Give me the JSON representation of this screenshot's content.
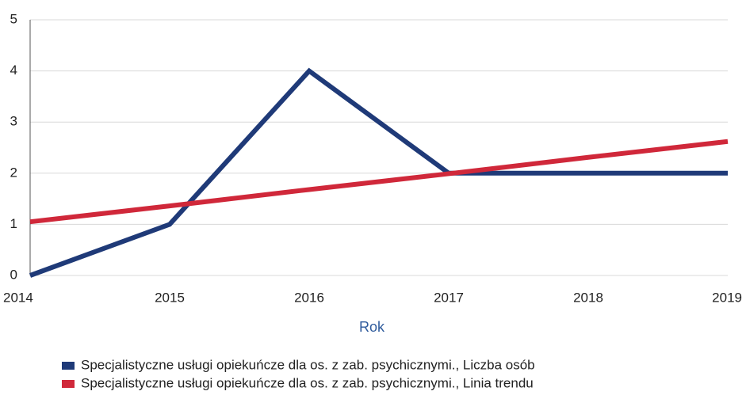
{
  "chart_data": {
    "type": "line",
    "x": [
      2014,
      2015,
      2016,
      2017,
      2018,
      2019
    ],
    "series": [
      {
        "name": "Specjalistyczne usługi opiekuńcze dla os. z zab. psychicznymi., Liczba osób",
        "color": "#1f3a78",
        "values": [
          0,
          1,
          4,
          2,
          2,
          2
        ]
      },
      {
        "name": "Specjalistyczne usługi opiekuńcze dla os. z zab. psychicznymi., Linia trendu",
        "color": "#d0283a",
        "values": [
          1.05,
          1.36,
          1.68,
          1.99,
          2.31,
          2.62
        ]
      }
    ],
    "xlabel": "Rok",
    "xlim": [
      2014,
      2019
    ],
    "xticks": [
      2014,
      2015,
      2016,
      2017,
      2018,
      2019
    ],
    "ylim": [
      0,
      5
    ],
    "yticks": [
      0,
      1,
      2,
      3,
      4,
      5
    ],
    "grid": true
  }
}
